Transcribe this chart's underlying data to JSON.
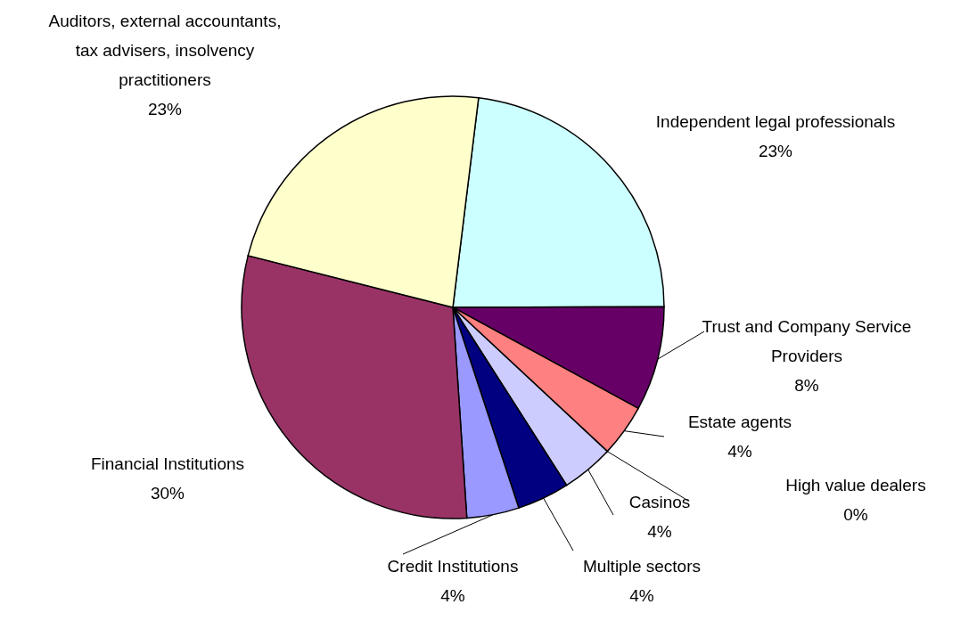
{
  "chart_data": {
    "type": "pie",
    "categories": [
      "Independent legal professionals",
      "Trust and Company Service Providers",
      "Estate agents",
      "High value dealers",
      "Casinos",
      "Multiple sectors",
      "Credit Institutions",
      "Financial Institutions",
      "Auditors, external accountants, tax advisers, insolvency practitioners"
    ],
    "values": [
      23,
      8,
      4,
      0,
      4,
      4,
      4,
      30,
      23
    ],
    "value_labels": [
      "23%",
      "8%",
      "4%",
      "0%",
      "4%",
      "4%",
      "4%",
      "30%",
      "23%"
    ],
    "colors": [
      "#ccffff",
      "#660066",
      "#ff8080",
      "#0066cc",
      "#ccccff",
      "#000080",
      "#9999ff",
      "#993366",
      "#ffffcc"
    ]
  }
}
